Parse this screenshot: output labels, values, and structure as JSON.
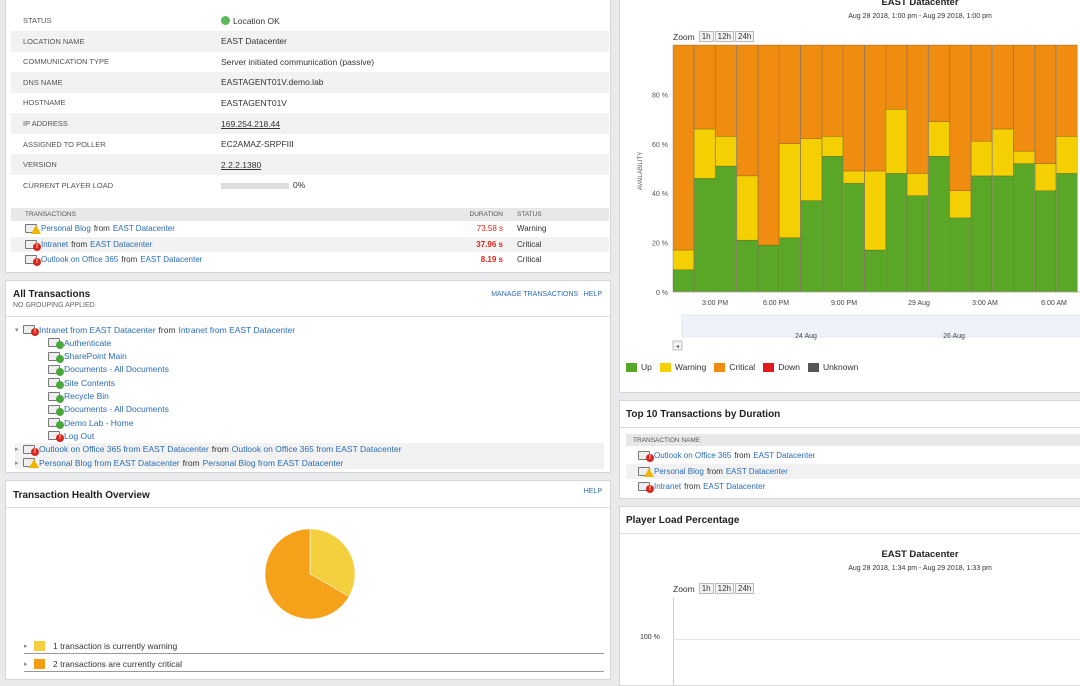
{
  "details": {
    "rows": [
      {
        "label": "STATUS",
        "value": "Location OK",
        "status": true
      },
      {
        "label": "LOCATION NAME",
        "value": "EAST Datacenter"
      },
      {
        "label": "COMMUNICATION TYPE",
        "value": "Server initiated communication (passive)"
      },
      {
        "label": "DNS NAME",
        "value": "EASTAGENT01V.demo.lab"
      },
      {
        "label": "HOSTNAME",
        "value": "EASTAGENT01V"
      },
      {
        "label": "IP ADDRESS",
        "value": "169.254.218.44",
        "link": true
      },
      {
        "label": "ASSIGNED TO POLLER",
        "value": "EC2AMAZ-SRPFIII"
      },
      {
        "label": "VERSION",
        "value": "2.2.2.1380",
        "link": true
      },
      {
        "label": "CURRENT PLAYER LOAD",
        "value": "0%",
        "bar": true
      }
    ],
    "tx_header": {
      "name": "TRANSACTIONS",
      "duration": "DURATION",
      "status": "STATUS"
    },
    "transactions": [
      {
        "name": "Personal Blog",
        "from": "from",
        "loc": "EAST Datacenter",
        "duration": "73.58 s",
        "status": "Warning",
        "badge": "warn"
      },
      {
        "name": "Intranet",
        "from": "from",
        "loc": "EAST Datacenter",
        "duration": "37.96 s",
        "status": "Critical",
        "badge": "crit"
      },
      {
        "name": "Outlook on Office 365",
        "from": "from",
        "loc": "EAST Datacenter",
        "duration": "8.19 s",
        "status": "Critical",
        "badge": "crit"
      }
    ]
  },
  "all_tx": {
    "title": "All Transactions",
    "subtitle": "NO GROUPING APPLIED",
    "manage": "MANAGE TRANSACTIONS",
    "help": "HELP",
    "tree": [
      {
        "a": "Intranet from EAST Datacenter",
        "mid": "from",
        "b": "Intranet from EAST Datacenter",
        "badge": "crit",
        "level": 0,
        "expanded": true
      },
      {
        "a": "Authenticate",
        "badge": "ok",
        "level": 1
      },
      {
        "a": "SharePoint Main",
        "badge": "ok",
        "level": 1
      },
      {
        "a": "Documents - All Documents",
        "badge": "ok",
        "level": 1
      },
      {
        "a": "Site Contents",
        "badge": "ok",
        "level": 1
      },
      {
        "a": "Recycle Bin",
        "badge": "ok",
        "level": 1
      },
      {
        "a": "Documents - All Documents",
        "badge": "ok",
        "level": 1
      },
      {
        "a": "Demo Lab - Home",
        "badge": "ok",
        "level": 1
      },
      {
        "a": "Log Out",
        "badge": "crit",
        "level": 1
      },
      {
        "a": "Outlook on Office 365 from EAST Datacenter",
        "mid": "from",
        "b": "Outlook on Office 365 from EAST Datacenter",
        "badge": "crit",
        "level": 0
      },
      {
        "a": "Personal Blog from EAST Datacenter",
        "mid": "from",
        "b": "Personal Blog from EAST Datacenter",
        "badge": "warn",
        "level": 0
      }
    ]
  },
  "health": {
    "title": "Transaction Health Overview",
    "help": "HELP",
    "items": [
      {
        "text": "1 transaction is currently warning",
        "color": "#f4d03f"
      },
      {
        "text": "2 transactions are currently critical",
        "color": "#f39c12"
      }
    ],
    "pie": {
      "warning": 1,
      "critical": 2,
      "warning_color": "#f4d03f",
      "critical_color": "#f5a21a"
    }
  },
  "availability_chart": {
    "title": "EAST Datacenter",
    "subtitle": "Aug 28 2018, 1:00 pm - Aug 29 2018, 1:00 pm",
    "zoom_label": "Zoom",
    "zoom_buttons": [
      "1h",
      "12h",
      "24h"
    ],
    "y_label": "AVAILABILITY",
    "nav_labels": [
      "24 Aug",
      "26 Aug"
    ],
    "nav_button": "◂",
    "legend": [
      {
        "label": "Up",
        "color": "#5aa626"
      },
      {
        "label": "Warning",
        "color": "#f4d003"
      },
      {
        "label": "Critical",
        "color": "#f08c10"
      },
      {
        "label": "Down",
        "color": "#e5171f"
      },
      {
        "label": "Unknown",
        "color": "#555555"
      }
    ]
  },
  "chart_data": {
    "type": "bar",
    "stacked": true,
    "y_ticks": [
      "0 %",
      "20 %",
      "40 %",
      "60 %",
      "80 %"
    ],
    "x_ticks": [
      "3:00 PM",
      "6:00 PM",
      "9:00 PM",
      "29 Aug",
      "3:00 AM",
      "6:00 AM"
    ],
    "ylim": [
      0,
      100
    ],
    "series": [
      {
        "name": "Up",
        "values": [
          9,
          46,
          51,
          21,
          19,
          22,
          37,
          55,
          44,
          17,
          48,
          39,
          55,
          30,
          47,
          47,
          52,
          41,
          48
        ]
      },
      {
        "name": "Warning",
        "values": [
          8,
          20,
          12,
          26,
          0,
          38,
          25,
          8,
          5,
          32,
          26,
          9,
          14,
          11,
          14,
          19,
          5,
          11,
          15
        ]
      },
      {
        "name": "Critical",
        "values": [
          83,
          34,
          37,
          53,
          81,
          40,
          38,
          37,
          51,
          51,
          26,
          52,
          31,
          59,
          39,
          34,
          43,
          48,
          37
        ]
      }
    ]
  },
  "top10": {
    "title": "Top 10 Transactions by Duration",
    "col": "TRANSACTION NAME",
    "rows": [
      {
        "name": "Outlook on Office 365",
        "from": "from",
        "loc": "EAST Datacenter",
        "badge": "crit"
      },
      {
        "name": "Personal Blog",
        "from": "from",
        "loc": "EAST Datacenter",
        "badge": "warn"
      },
      {
        "name": "Intranet",
        "from": "from",
        "loc": "EAST Datacenter",
        "badge": "crit"
      }
    ]
  },
  "player_load": {
    "title": "Player Load Percentage",
    "chart_title": "EAST Datacenter",
    "chart_subtitle": "Aug 28 2018, 1:34 pm - Aug 29 2018, 1:33 pm",
    "zoom_label": "Zoom",
    "zoom_buttons": [
      "1h",
      "12h",
      "24h"
    ],
    "y_tick": "100 %"
  }
}
